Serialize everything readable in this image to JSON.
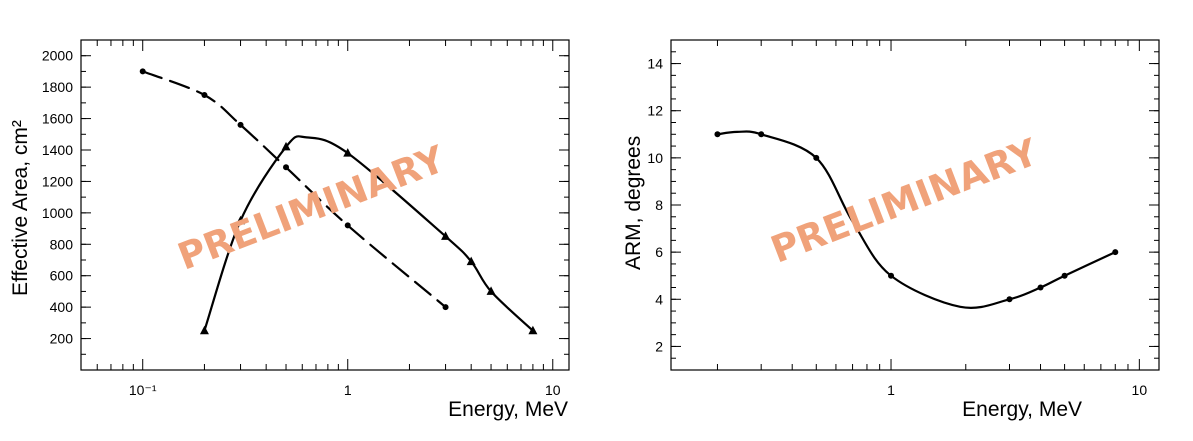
{
  "chart_data": [
    {
      "type": "line",
      "xscale": "log",
      "xlim": [
        0.05,
        12
      ],
      "ylim": [
        0,
        2100
      ],
      "xlabel": "Energy, MeV",
      "ylabel": "Effective Area, cm²",
      "y_ticks": [
        200,
        400,
        600,
        800,
        1000,
        1200,
        1400,
        1600,
        1800,
        2000
      ],
      "x_ticks": [
        {
          "value": 0.1,
          "label": "10⁻¹"
        },
        {
          "value": 1,
          "label": "1"
        },
        {
          "value": 10,
          "label": "10"
        }
      ],
      "watermark": "PRELIMINARY",
      "series": [
        {
          "name": "dashed-circles",
          "style": "dashed",
          "marker": "circle",
          "x": [
            0.1,
            0.2,
            0.3,
            0.5,
            1.0,
            3.0
          ],
          "y": [
            1900,
            1750,
            1560,
            1290,
            920,
            400
          ]
        },
        {
          "name": "solid-triangles",
          "style": "solid",
          "marker": "triangle",
          "x": [
            0.2,
            0.3,
            0.5,
            1.0,
            3.0,
            4.0,
            5.0,
            8.0
          ],
          "y": [
            250,
            950,
            1420,
            1380,
            850,
            690,
            500,
            250
          ]
        }
      ]
    },
    {
      "type": "line",
      "xscale": "log",
      "xlim": [
        0.13,
        12
      ],
      "ylim": [
        1,
        15
      ],
      "xlabel": "Energy, MeV",
      "ylabel": "ARM, degrees",
      "y_ticks": [
        2,
        4,
        6,
        8,
        10,
        12,
        14
      ],
      "x_ticks": [
        {
          "value": 1,
          "label": "1"
        },
        {
          "value": 10,
          "label": "10"
        }
      ],
      "watermark": "PRELIMINARY",
      "series": [
        {
          "name": "arm",
          "style": "solid",
          "marker": "circle",
          "x": [
            0.2,
            0.3,
            0.5,
            1.0,
            3.0,
            4.0,
            5.0,
            8.0
          ],
          "y": [
            11.0,
            11.0,
            10.0,
            5.0,
            4.0,
            4.5,
            5.0,
            6.0
          ]
        }
      ]
    }
  ]
}
